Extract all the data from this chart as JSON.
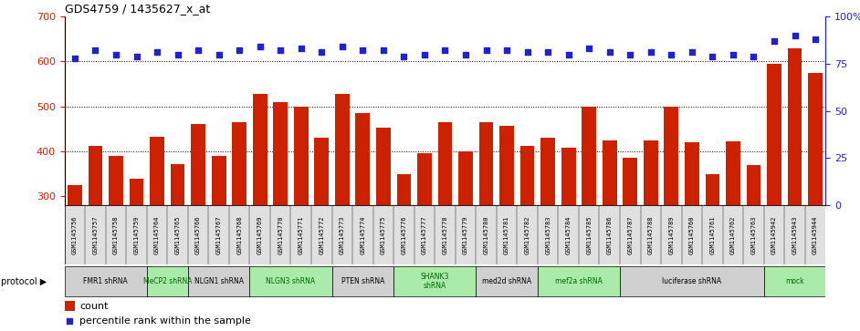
{
  "title": "GDS4759 / 1435627_x_at",
  "samples": [
    "GSM1145756",
    "GSM1145757",
    "GSM1145758",
    "GSM1145759",
    "GSM1145764",
    "GSM1145765",
    "GSM1145766",
    "GSM1145767",
    "GSM1145768",
    "GSM1145769",
    "GSM1145770",
    "GSM1145771",
    "GSM1145772",
    "GSM1145773",
    "GSM1145774",
    "GSM1145775",
    "GSM1145776",
    "GSM1145777",
    "GSM1145778",
    "GSM1145779",
    "GSM1145780",
    "GSM1145781",
    "GSM1145782",
    "GSM1145783",
    "GSM1145784",
    "GSM1145785",
    "GSM1145786",
    "GSM1145787",
    "GSM1145788",
    "GSM1145789",
    "GSM1145760",
    "GSM1145761",
    "GSM1145762",
    "GSM1145763",
    "GSM1145942",
    "GSM1145943",
    "GSM1145944"
  ],
  "bar_values": [
    325,
    412,
    390,
    340,
    432,
    372,
    460,
    390,
    465,
    528,
    510,
    500,
    430,
    528,
    485,
    453,
    350,
    395,
    465,
    400,
    465,
    457,
    413,
    430,
    408,
    500,
    425,
    385,
    425,
    500,
    420,
    350,
    423,
    370,
    595,
    630,
    575
  ],
  "percentile_values": [
    78,
    82,
    80,
    79,
    81,
    80,
    82,
    80,
    82,
    84,
    82,
    83,
    81,
    84,
    82,
    82,
    79,
    80,
    82,
    80,
    82,
    82,
    81,
    81,
    80,
    83,
    81,
    80,
    81,
    80,
    81,
    79,
    80,
    79,
    87,
    90,
    88
  ],
  "protocols": [
    {
      "label": "FMR1 shRNA",
      "start": 0,
      "end": 4,
      "color": "#d0d0d0"
    },
    {
      "label": "MeCP2 shRNA",
      "start": 4,
      "end": 6,
      "color": "#aaeaaa"
    },
    {
      "label": "NLGN1 shRNA",
      "start": 6,
      "end": 9,
      "color": "#d0d0d0"
    },
    {
      "label": "NLGN3 shRNA",
      "start": 9,
      "end": 13,
      "color": "#aaeaaa"
    },
    {
      "label": "PTEN shRNA",
      "start": 13,
      "end": 16,
      "color": "#d0d0d0"
    },
    {
      "label": "SHANK3\nshRNA",
      "start": 16,
      "end": 20,
      "color": "#aaeaaa"
    },
    {
      "label": "med2d shRNA",
      "start": 20,
      "end": 23,
      "color": "#d0d0d0"
    },
    {
      "label": "mef2a shRNA",
      "start": 23,
      "end": 27,
      "color": "#aaeaaa"
    },
    {
      "label": "luciferase shRNA",
      "start": 27,
      "end": 34,
      "color": "#d0d0d0"
    },
    {
      "label": "mock",
      "start": 34,
      "end": 37,
      "color": "#aaeaaa"
    }
  ],
  "ylim_left": [
    280,
    700
  ],
  "ylim_right": [
    0,
    100
  ],
  "yticks_left": [
    300,
    400,
    500,
    600,
    700
  ],
  "yticks_right": [
    0,
    25,
    50,
    75,
    100
  ],
  "bar_color": "#cc2200",
  "dot_color": "#2222cc",
  "bg_color": "#ffffff",
  "dotted_lines": [
    400,
    500,
    600
  ]
}
